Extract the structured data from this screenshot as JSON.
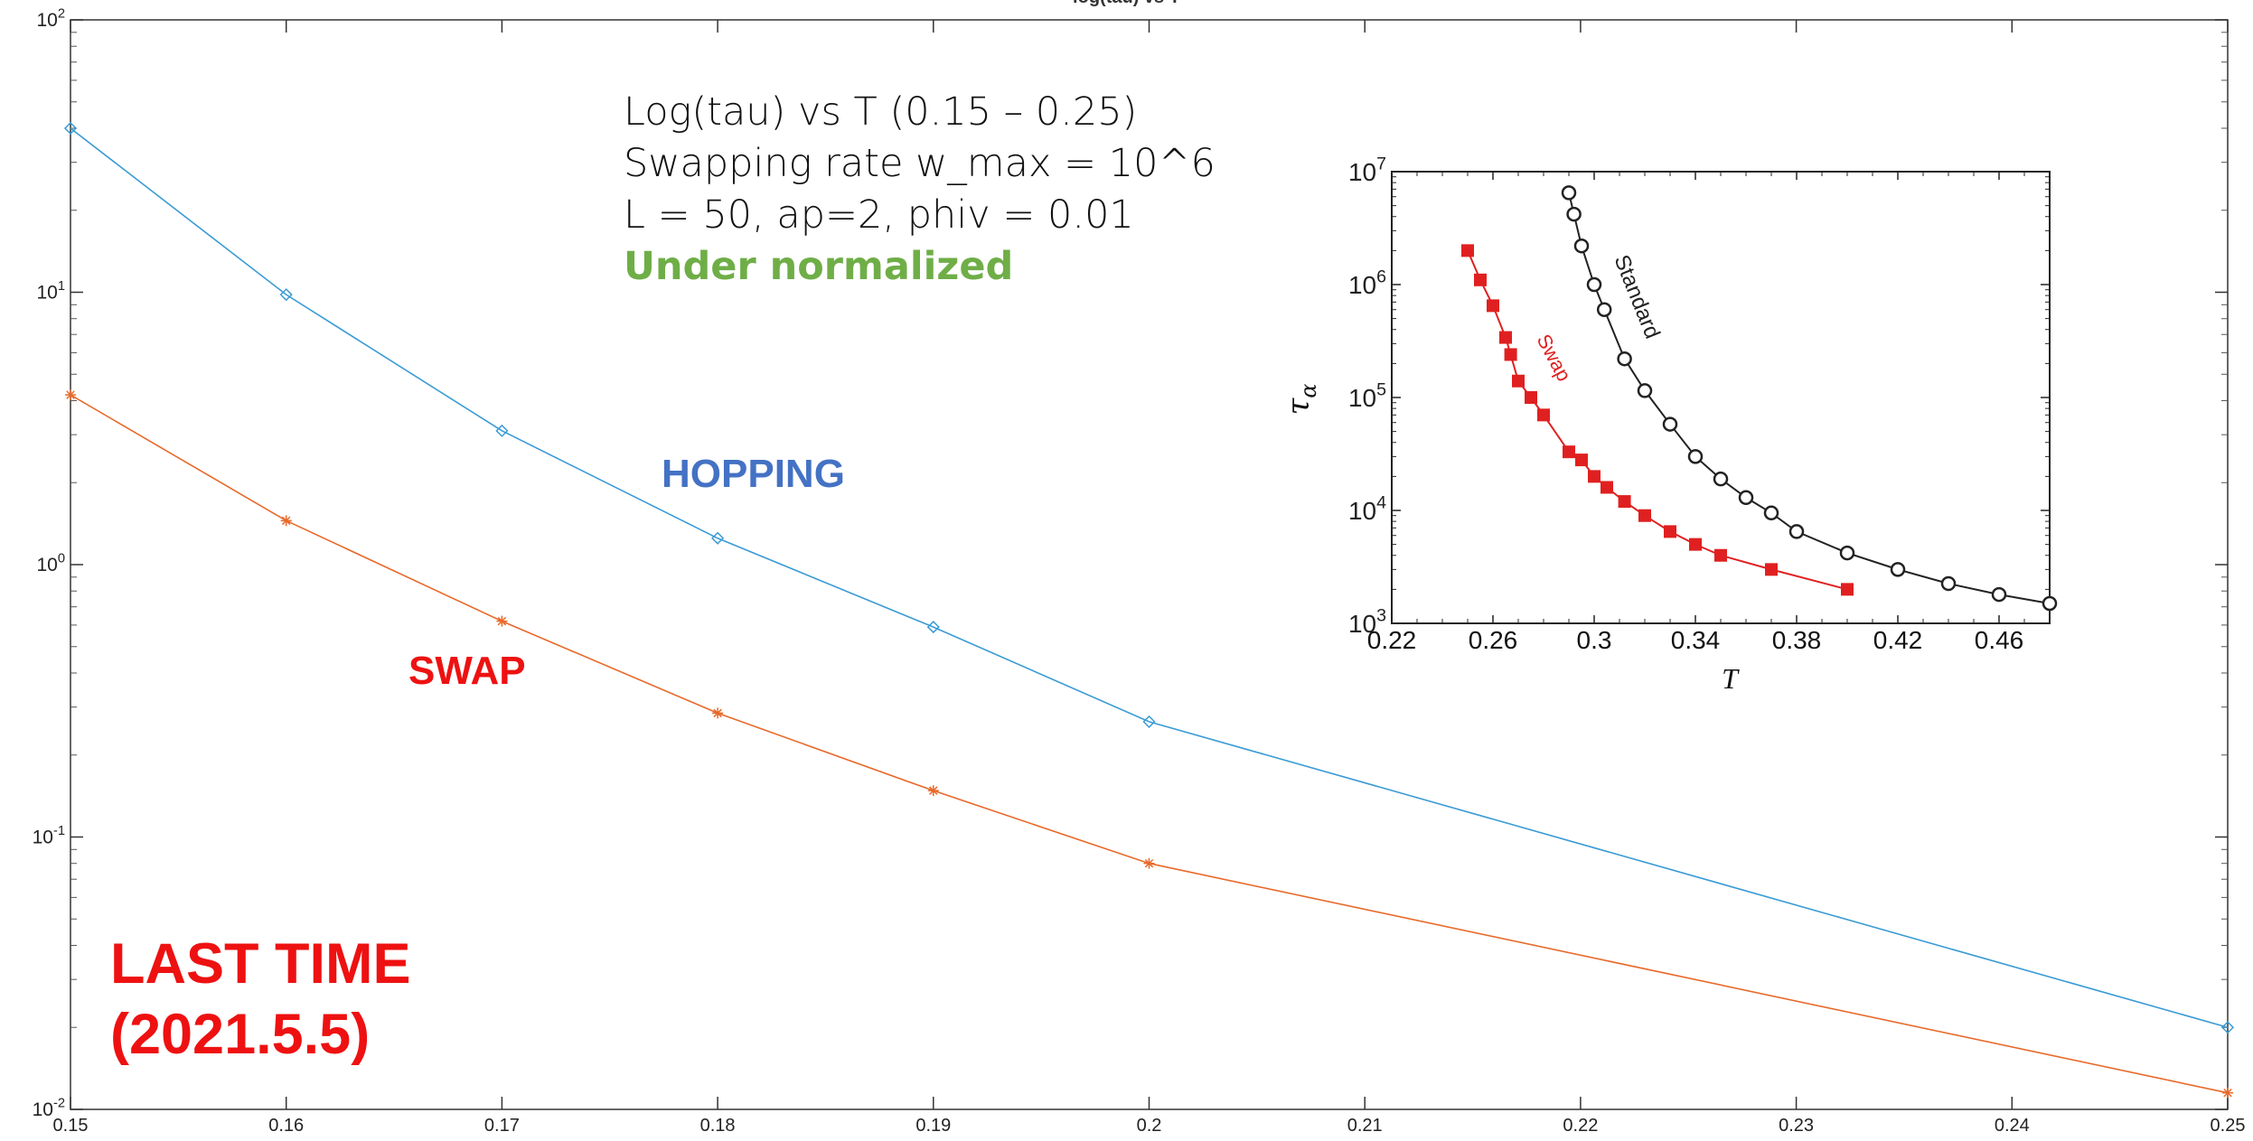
{
  "chart_data": [
    {
      "type": "line",
      "title": "log(tau) vs T",
      "xlabel": "",
      "ylabel": "",
      "yscale": "log",
      "xlim": [
        0.15,
        0.25
      ],
      "ylim": [
        0.01,
        100
      ],
      "x_ticks": [
        "0.15",
        "0.16",
        "0.17",
        "0.18",
        "0.19",
        "0.2",
        "0.21",
        "0.22",
        "0.23",
        "0.24",
        "0.25"
      ],
      "y_ticks": [
        {
          "base": "10",
          "exp": "-2",
          "value": 0.01
        },
        {
          "base": "10",
          "exp": "-1",
          "value": 0.1
        },
        {
          "base": "10",
          "exp": "0",
          "value": 1
        },
        {
          "base": "10",
          "exp": "1",
          "value": 10
        },
        {
          "base": "10",
          "exp": "2",
          "value": 100
        }
      ],
      "grid": false,
      "series": [
        {
          "name": "HOPPING",
          "color": "#3a9bd5",
          "marker": "diamond",
          "x": [
            0.15,
            0.16,
            0.17,
            0.18,
            0.19,
            0.2,
            0.25
          ],
          "y": [
            40,
            9.8,
            3.1,
            1.25,
            0.59,
            0.265,
            0.02
          ]
        },
        {
          "name": "SWAP",
          "color": "#e8692a",
          "marker": "asterisk",
          "x": [
            0.15,
            0.16,
            0.17,
            0.18,
            0.19,
            0.2,
            0.25
          ],
          "y": [
            4.2,
            1.45,
            0.62,
            0.285,
            0.148,
            0.08,
            0.0115
          ]
        }
      ]
    },
    {
      "type": "line",
      "title": "",
      "xlabel": "T",
      "ylabel": "τ_α",
      "yscale": "log",
      "xlim": [
        0.22,
        0.48
      ],
      "ylim": [
        1000,
        10000000
      ],
      "x_ticks": [
        "0.22",
        "0.26",
        "0.3",
        "0.34",
        "0.38",
        "0.42",
        "0.46"
      ],
      "y_ticks": [
        {
          "base": "10",
          "exp": "3",
          "value": 1000
        },
        {
          "base": "10",
          "exp": "4",
          "value": 10000
        },
        {
          "base": "10",
          "exp": "5",
          "value": 100000
        },
        {
          "base": "10",
          "exp": "6",
          "value": 1000000
        },
        {
          "base": "10",
          "exp": "7",
          "value": 10000000
        }
      ],
      "series": [
        {
          "name": "Standard",
          "color": "#222222",
          "marker": "open-circle",
          "x": [
            0.29,
            0.292,
            0.295,
            0.3,
            0.304,
            0.312,
            0.32,
            0.33,
            0.34,
            0.35,
            0.36,
            0.37,
            0.38,
            0.4,
            0.42,
            0.44,
            0.46,
            0.48
          ],
          "y": [
            6500000,
            4200000,
            2200000,
            1000000,
            600000,
            220000,
            115000,
            58000,
            30000,
            19000,
            13000,
            9500,
            6500,
            4200,
            3000,
            2250,
            1800,
            1500
          ]
        },
        {
          "name": "Swap",
          "color": "#e02020",
          "marker": "filled-square",
          "x": [
            0.25,
            0.255,
            0.26,
            0.265,
            0.267,
            0.27,
            0.275,
            0.28,
            0.29,
            0.295,
            0.3,
            0.305,
            0.312,
            0.32,
            0.33,
            0.34,
            0.35,
            0.37,
            0.4
          ],
          "y": [
            2000000,
            1100000,
            650000,
            340000,
            240000,
            140000,
            100000,
            70000,
            33000,
            28000,
            20000,
            16000,
            12000,
            9000,
            6500,
            5000,
            4000,
            3000,
            2000
          ]
        }
      ]
    }
  ],
  "notes": {
    "line1": "Log(tau) vs T (0.15 – 0.25)",
    "line2": "Swapping rate w_max = 10^6",
    "line3": "L = 50, ap=2, phiv = 0.01",
    "line4": "Under normalized"
  },
  "labels": {
    "hopping": "HOPPING",
    "swap": "SWAP",
    "last_time_1": "LAST TIME",
    "last_time_2": "(2021.5.5)"
  },
  "colors": {
    "hopping_label": "#4472c4",
    "swap_label": "#ee1111",
    "note_green": "#6fae47"
  }
}
